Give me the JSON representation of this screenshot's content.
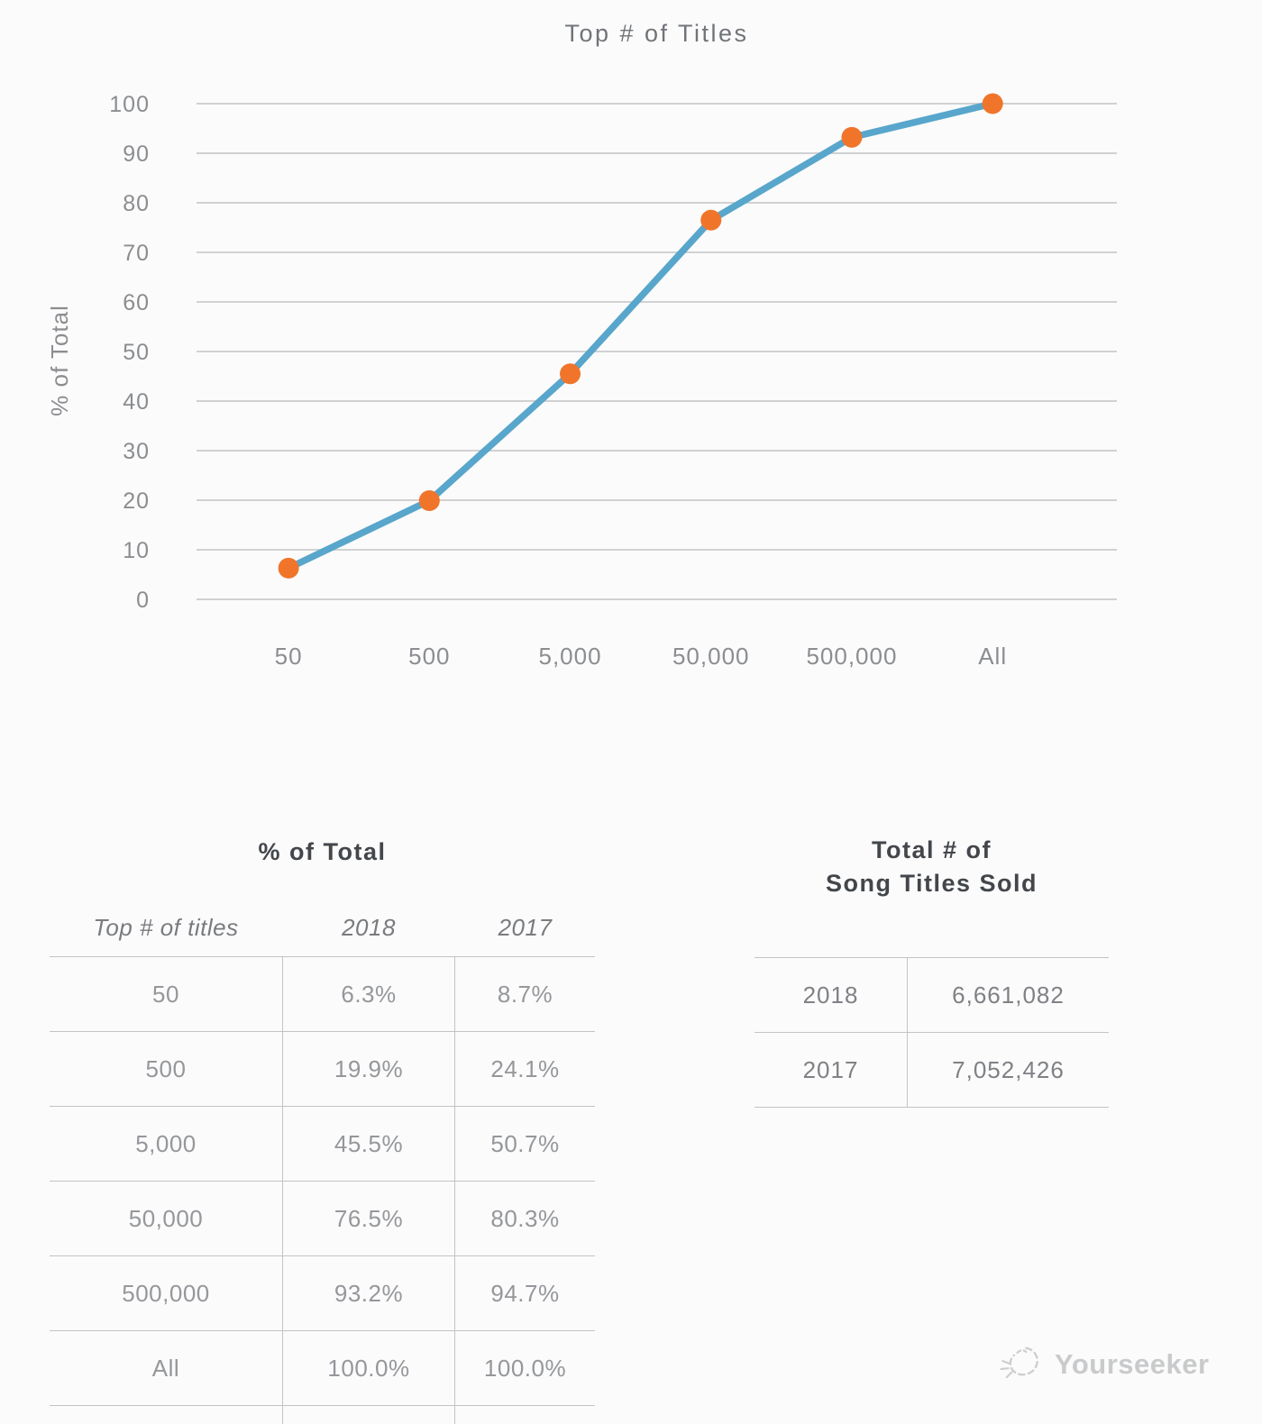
{
  "page": {
    "background": "#fbfbfb"
  },
  "chart_data": {
    "type": "line",
    "title": "Top # of Titles",
    "xlabel": "",
    "ylabel": "% of Total",
    "categories": [
      "50",
      "500",
      "5,000",
      "50,000",
      "500,000",
      "All"
    ],
    "series": [
      {
        "name": "2018",
        "values": [
          6.3,
          19.9,
          45.5,
          76.5,
          93.2,
          100.0
        ]
      }
    ],
    "ylim": [
      0,
      100
    ],
    "yticks": [
      0,
      10,
      20,
      30,
      40,
      50,
      60,
      70,
      80,
      90,
      100
    ],
    "grid": "horizontal",
    "legend": "none",
    "line_color": "#58a6cb",
    "marker_color": "#f0752b",
    "grid_color": "#cacbcd",
    "axis_text_color": "#8b8d90",
    "title_color": "#717478"
  },
  "tables": {
    "percent_of_total": {
      "title": "% of Total",
      "columns": [
        "Top # of titles",
        "2018",
        "2017"
      ],
      "rows": [
        [
          "50",
          "6.3%",
          "8.7%"
        ],
        [
          "500",
          "19.9%",
          "24.1%"
        ],
        [
          "5,000",
          "45.5%",
          "50.7%"
        ],
        [
          "50,000",
          "76.5%",
          "80.3%"
        ],
        [
          "500,000",
          "93.2%",
          "94.7%"
        ],
        [
          "All",
          "100.0%",
          "100.0%"
        ]
      ]
    },
    "titles_sold": {
      "title_line1": "Total # of",
      "title_line2": "Song Titles Sold",
      "rows": [
        [
          "2018",
          "6,661,082"
        ],
        [
          "2017",
          "7,052,426"
        ]
      ]
    }
  },
  "watermark": {
    "label": "Yourseeker"
  }
}
